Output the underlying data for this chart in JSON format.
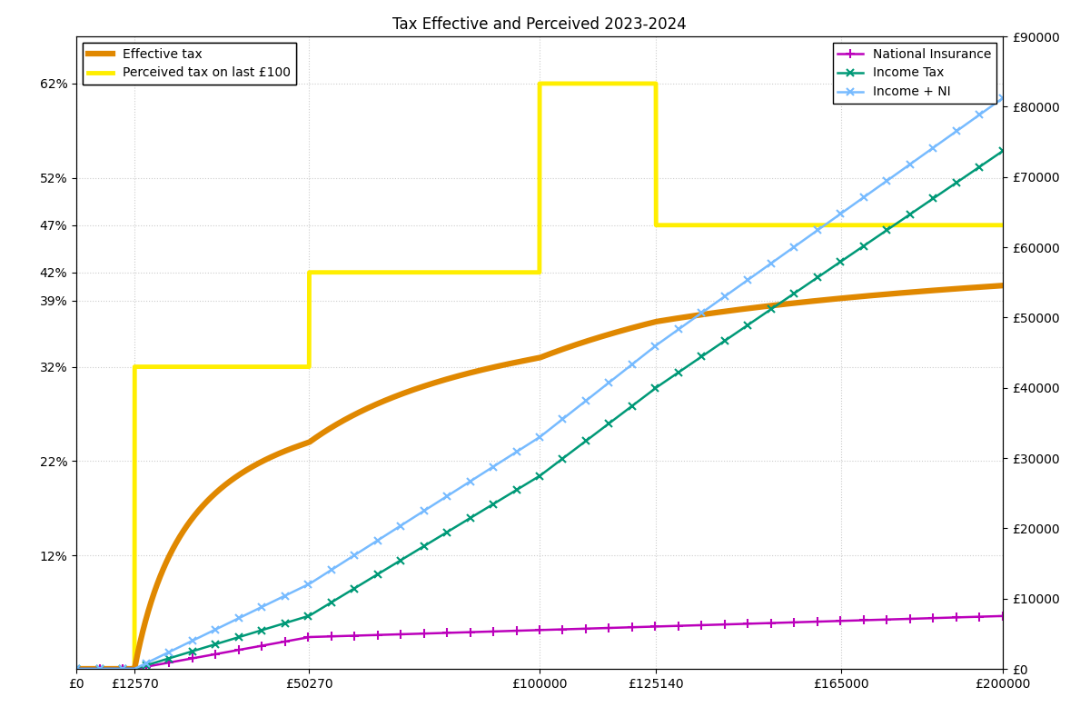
{
  "title": "Tax Effective and Perceived 2023-2024",
  "xlim": [
    0,
    200000
  ],
  "ylim_left": [
    0,
    0.67
  ],
  "ylim_right": [
    0,
    90000
  ],
  "xtick_positions": [
    0,
    12570,
    50270,
    100000,
    125140,
    165000,
    200000
  ],
  "xtick_labels": [
    "£0",
    "£12570",
    "£50270",
    "£100000",
    "£125140",
    "£165000",
    "£200000"
  ],
  "ytick_left_positions": [
    0.12,
    0.22,
    0.32,
    0.39,
    0.42,
    0.47,
    0.52,
    0.62
  ],
  "ytick_left_labels": [
    "12%",
    "22%",
    "32%",
    "39%",
    "42%",
    "47%",
    "52%",
    "62%"
  ],
  "ytick_right_positions": [
    0,
    10000,
    20000,
    30000,
    40000,
    50000,
    60000,
    70000,
    80000,
    90000
  ],
  "ytick_right_labels": [
    "£0",
    "£10000",
    "£20000",
    "£30000",
    "£40000",
    "£50000",
    "£60000",
    "£70000",
    "£80000",
    "£90000"
  ],
  "personal_allowance": 12570,
  "basic_rate_limit": 50270,
  "additional_rate_threshold": 125140,
  "pa_taper_start": 100000,
  "ni_primary_threshold": 12570,
  "ni_upper_earnings_limit": 50270,
  "income_tax_basic_rate": 0.2,
  "income_tax_higher_rate": 0.4,
  "income_tax_additional_rate": 0.45,
  "ni_rate_main": 0.12,
  "ni_rate_upper": 0.02,
  "effective_tax_color": "#E08800",
  "perceived_tax_color": "#FFEE00",
  "ni_color": "#BB00BB",
  "income_tax_color": "#009977",
  "income_ni_color": "#77BBFF",
  "effective_tax_linewidth": 4.5,
  "perceived_tax_linewidth": 3.5,
  "ni_linewidth": 1.8,
  "income_tax_linewidth": 1.8,
  "income_ni_linewidth": 1.8,
  "marker_step": 5000,
  "background_color": "#ffffff",
  "grid_color": "#cccccc",
  "legend1_loc": "upper left",
  "legend2_loc": "upper right"
}
